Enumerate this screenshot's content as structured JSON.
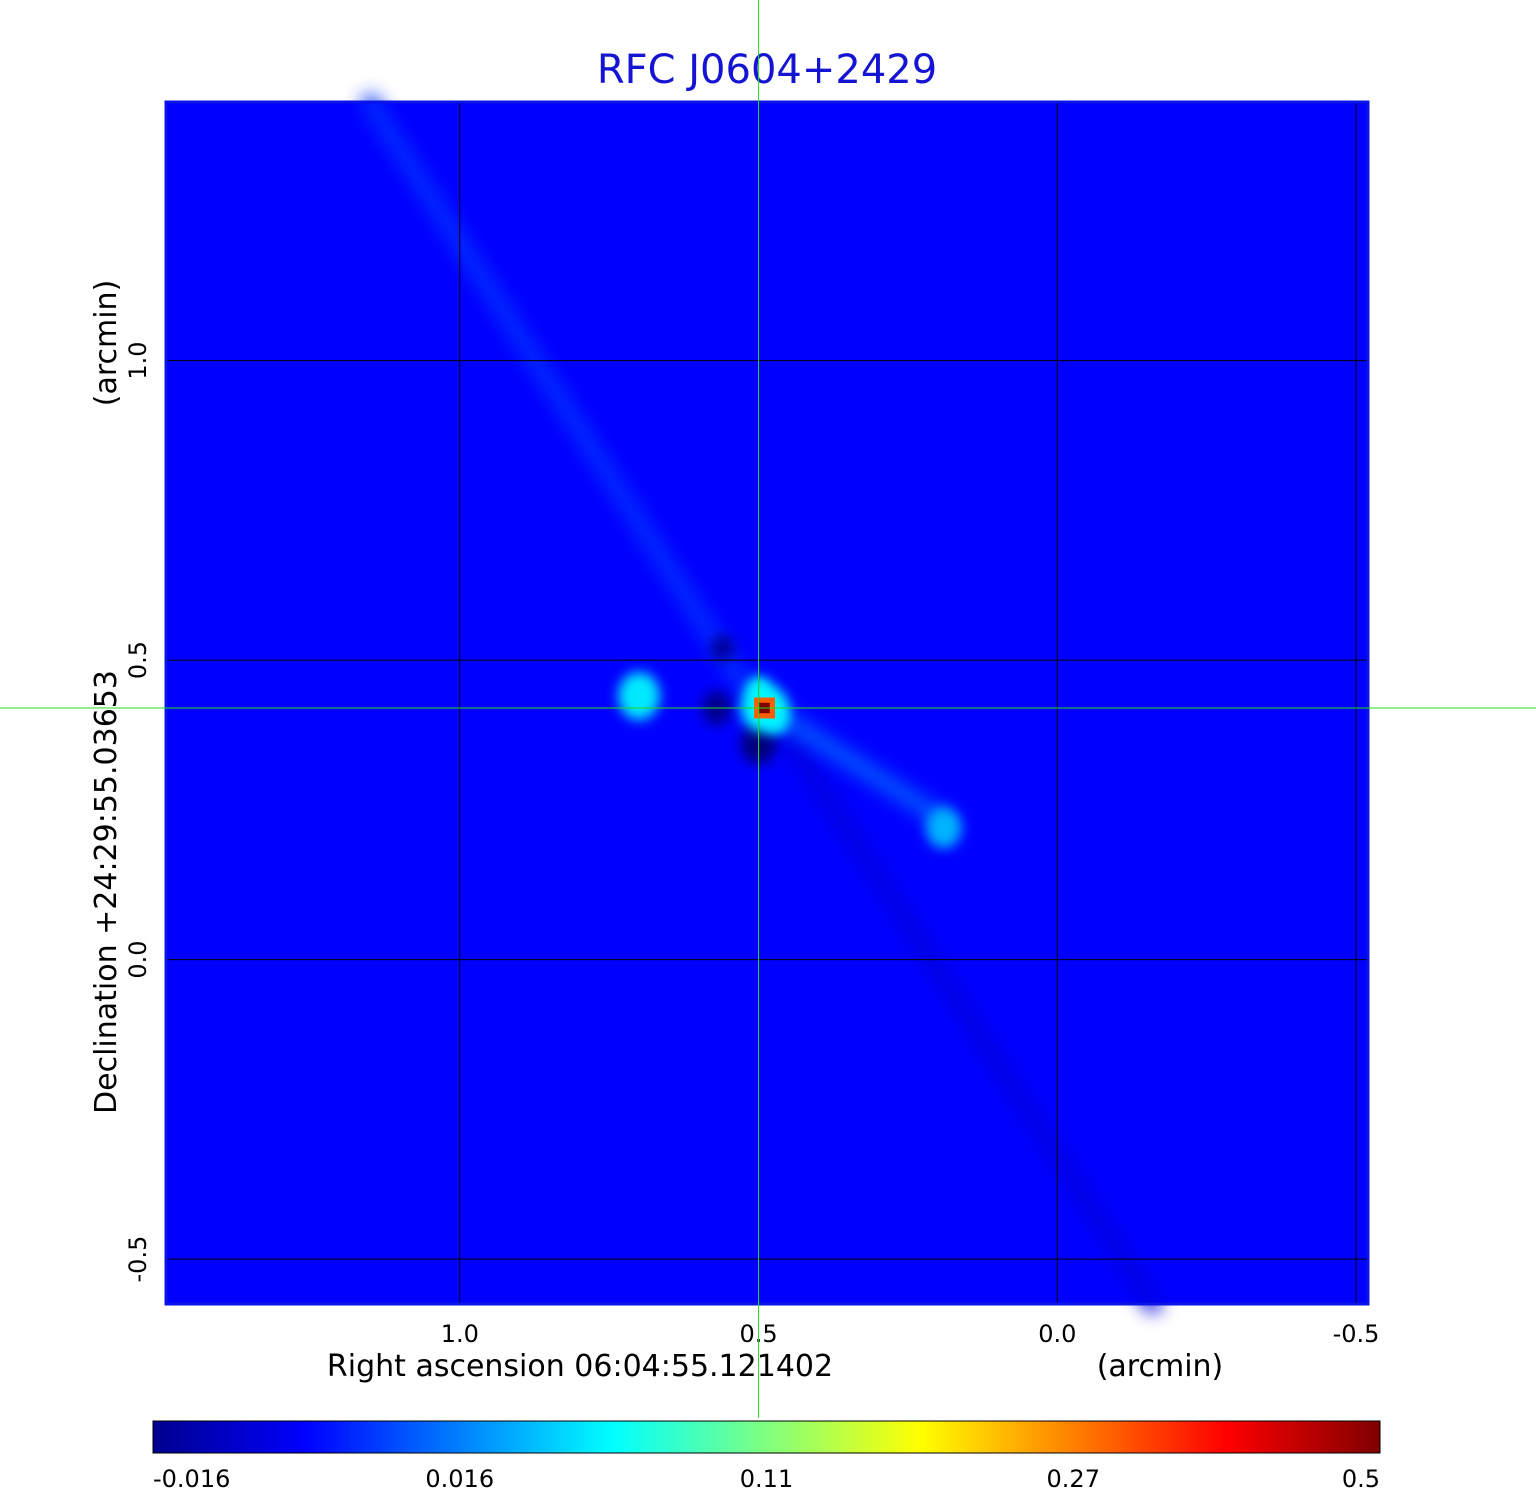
{
  "chart_data": {
    "type": "heatmap",
    "title": "RFC J0604+2429",
    "xlabel": "Right ascension  06:04:55.121402",
    "xunit": "(arcmin)",
    "ylabel": "Declination  +24:29:55.03653",
    "yunit": "(arcmin)",
    "x_range": [
      1.49,
      -0.52
    ],
    "y_range": [
      -0.575,
      1.43
    ],
    "x_ticks": [
      {
        "value": 1.0,
        "label": "1.0"
      },
      {
        "value": 0.5,
        "label": "0.5"
      },
      {
        "value": 0.0,
        "label": "0.0"
      },
      {
        "value": -0.5,
        "label": "-0.5"
      }
    ],
    "y_ticks": [
      {
        "value": 1.0,
        "label": "1.0"
      },
      {
        "value": 0.5,
        "label": "0.5"
      },
      {
        "value": 0.0,
        "label": "0.0"
      },
      {
        "value": -0.5,
        "label": "-0.5"
      }
    ],
    "grid": true,
    "crosshair": {
      "x": 0.5,
      "y": 0.42,
      "color": "#22dd22"
    },
    "background_value": 0.0,
    "features": [
      {
        "kind": "peak",
        "x": 0.49,
        "y": 0.42,
        "value": 0.5,
        "size": 0.025
      },
      {
        "kind": "blob",
        "x": 0.7,
        "y": 0.44,
        "value": 0.055,
        "size": 0.035
      },
      {
        "kind": "blob",
        "x": 0.19,
        "y": 0.22,
        "value": 0.035,
        "size": 0.03
      },
      {
        "kind": "blob",
        "x": 0.5,
        "y": 0.45,
        "value": 0.06,
        "size": 0.02
      },
      {
        "kind": "blob",
        "x": 0.47,
        "y": 0.4,
        "value": 0.05,
        "size": 0.02
      },
      {
        "kind": "neg",
        "x": 0.5,
        "y": 0.36,
        "value": -0.016,
        "size": 0.03
      },
      {
        "kind": "neg",
        "x": 0.57,
        "y": 0.42,
        "value": -0.014,
        "size": 0.025
      },
      {
        "kind": "neg",
        "x": 0.56,
        "y": 0.52,
        "value": -0.012,
        "size": 0.02
      }
    ],
    "ridges": [
      {
        "from": [
          1.15,
          1.43
        ],
        "to": [
          0.52,
          0.45
        ],
        "value": 0.006
      },
      {
        "from": [
          0.45,
          0.37
        ],
        "to": [
          -0.16,
          -0.575
        ],
        "value": -0.004
      },
      {
        "from": [
          0.47,
          0.41
        ],
        "to": [
          0.2,
          0.24
        ],
        "value": 0.012
      }
    ],
    "colorbar": {
      "colormap": "jet",
      "scale": "nonlinear",
      "ticks": [
        {
          "value": -0.016,
          "label": "-0.016"
        },
        {
          "value": 0.016,
          "label": "0.016"
        },
        {
          "value": 0.11,
          "label": "0.11"
        },
        {
          "value": 0.27,
          "label": "0.27"
        },
        {
          "value": 0.5,
          "label": "0.5"
        }
      ]
    }
  }
}
